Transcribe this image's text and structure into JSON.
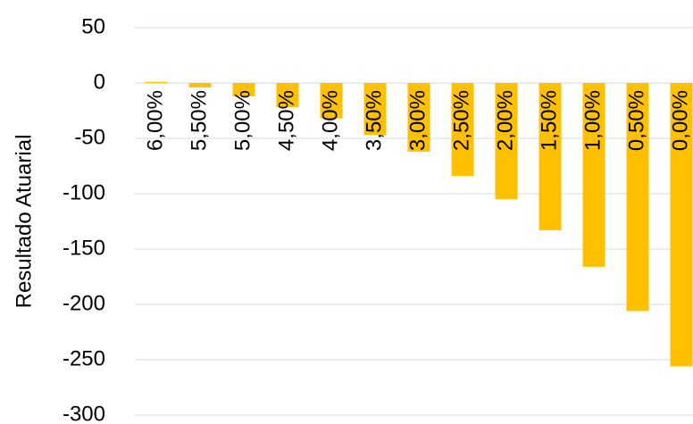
{
  "chart_data": {
    "type": "bar",
    "y_label": "Resultado Atuarial",
    "categories": [
      "6,00%",
      "5,50%",
      "5,00%",
      "4,50%",
      "4,00%",
      "3,50%",
      "3,00%",
      "2,50%",
      "2,00%",
      "1,50%",
      "1,00%",
      "0,50%",
      "0,00%"
    ],
    "values": [
      1,
      -4,
      -12,
      -22,
      -32,
      -47,
      -62,
      -84,
      -105,
      -133,
      -166,
      -206,
      -256
    ],
    "color": "#ffc000",
    "ylim": [
      -300,
      50
    ],
    "yticks": [
      -300,
      -250,
      -200,
      -150,
      -100,
      -50,
      0,
      50
    ],
    "grid": true
  }
}
